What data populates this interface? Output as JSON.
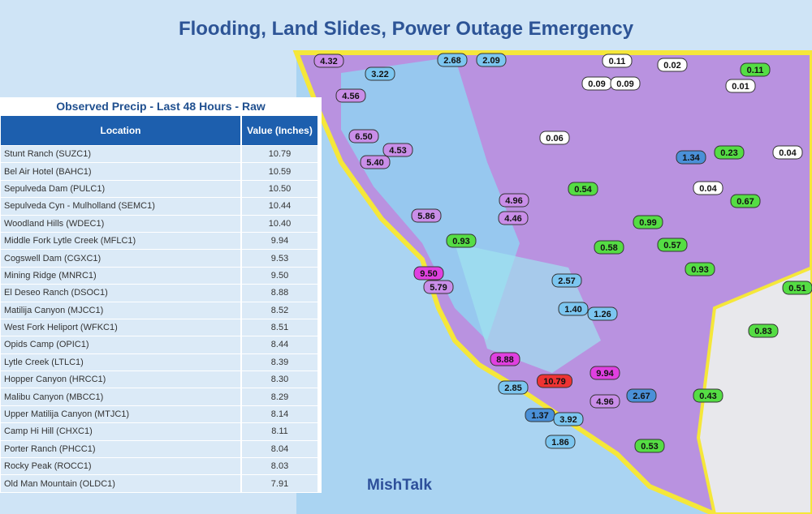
{
  "header": {
    "title": "Flooding, Land Slides, Power Outage Emergency"
  },
  "table": {
    "title": "Observed Precip - Last 48 Hours - Raw",
    "columns": [
      "Location",
      "Value (Inches)"
    ],
    "rows": [
      [
        "Stunt Ranch (SUZC1)",
        "10.79"
      ],
      [
        "Bel Air Hotel (BAHC1)",
        "10.59"
      ],
      [
        "Sepulveda Dam (PULC1)",
        "10.50"
      ],
      [
        "Sepulveda Cyn - Mulholland (SEMC1)",
        "10.44"
      ],
      [
        "Woodland Hills (WDEC1)",
        "10.40"
      ],
      [
        "Middle Fork Lytle Creek (MFLC1)",
        "9.94"
      ],
      [
        "Cogswell Dam (CGXC1)",
        "9.53"
      ],
      [
        "Mining Ridge (MNRC1)",
        "9.50"
      ],
      [
        "El Deseo Ranch (DSOC1)",
        "8.88"
      ],
      [
        "Matilija Canyon (MJCC1)",
        "8.52"
      ],
      [
        "West Fork Heliport (WFKC1)",
        "8.51"
      ],
      [
        "Opids Camp (OPIC1)",
        "8.44"
      ],
      [
        "Lytle Creek (LTLC1)",
        "8.39"
      ],
      [
        "Hopper Canyon (HRCC1)",
        "8.30"
      ],
      [
        "Malibu Canyon (MBCC1)",
        "8.29"
      ],
      [
        "Upper Matilija Canyon (MTJC1)",
        "8.14"
      ],
      [
        "Camp Hi Hill (CHXC1)",
        "8.11"
      ],
      [
        "Porter Ranch (PHCC1)",
        "8.04"
      ],
      [
        "Rocky Peak (ROCC1)",
        "8.03"
      ],
      [
        "Old Man Mountain (OLDC1)",
        "7.91"
      ]
    ]
  },
  "map": {
    "watermark": "MishTalk",
    "markers": [
      {
        "label": "4.32",
        "color": "#c98ee8"
      },
      {
        "label": "3.22",
        "color": "#7cc6f0"
      },
      {
        "label": "4.56",
        "color": "#c98ee8"
      },
      {
        "label": "2.68",
        "color": "#7cc6f0"
      },
      {
        "label": "2.09",
        "color": "#7cc6f0"
      },
      {
        "label": "0.11",
        "color": "#ffffff"
      },
      {
        "label": "0.02",
        "color": "#ffffff"
      },
      {
        "label": "0.11",
        "color": "#55dd44"
      },
      {
        "label": "0.09",
        "color": "#ffffff"
      },
      {
        "label": "0.09",
        "color": "#ffffff"
      },
      {
        "label": "0.01",
        "color": "#ffffff"
      },
      {
        "label": "6.50",
        "color": "#c98ee8"
      },
      {
        "label": "4.53",
        "color": "#c98ee8"
      },
      {
        "label": "5.40",
        "color": "#c98ee8"
      },
      {
        "label": "0.06",
        "color": "#ffffff"
      },
      {
        "label": "1.34",
        "color": "#4a90d8"
      },
      {
        "label": "0.23",
        "color": "#55dd44"
      },
      {
        "label": "0.04",
        "color": "#ffffff"
      },
      {
        "label": "0.54",
        "color": "#55dd44"
      },
      {
        "label": "0.99",
        "color": "#55dd44"
      },
      {
        "label": "5.86",
        "color": "#c98ee8"
      },
      {
        "label": "4.96",
        "color": "#c98ee8"
      },
      {
        "label": "4.46",
        "color": "#c98ee8"
      },
      {
        "label": "0.93",
        "color": "#55dd44"
      },
      {
        "label": "0.58",
        "color": "#55dd44"
      },
      {
        "label": "0.57",
        "color": "#55dd44"
      },
      {
        "label": "9.50",
        "color": "#e040e0"
      },
      {
        "label": "5.79",
        "color": "#c98ee8"
      },
      {
        "label": "2.57",
        "color": "#7cc6f0"
      },
      {
        "label": "1.40",
        "color": "#7cc6f0"
      },
      {
        "label": "1.26",
        "color": "#7cc6f0"
      },
      {
        "label": "8.88",
        "color": "#e040e0"
      },
      {
        "label": "10.79",
        "color": "#ee3333"
      },
      {
        "label": "9.94",
        "color": "#e040e0"
      },
      {
        "label": "2.85",
        "color": "#7cc6f0"
      },
      {
        "label": "4.96",
        "color": "#c98ee8"
      },
      {
        "label": "2.67",
        "color": "#4a90d8"
      },
      {
        "label": "0.43",
        "color": "#55dd44"
      },
      {
        "label": "1.37",
        "color": "#4a90d8"
      },
      {
        "label": "3.92",
        "color": "#7cc6f0"
      },
      {
        "label": "1.86",
        "color": "#7cc6f0"
      },
      {
        "label": "0.53",
        "color": "#55dd44"
      },
      {
        "label": "0.93",
        "color": "#55dd44"
      },
      {
        "label": "0.51",
        "color": "#55dd44"
      },
      {
        "label": "0.83",
        "color": "#55dd44"
      },
      {
        "label": "0.67",
        "color": "#55dd44"
      },
      {
        "label": "0.04",
        "color": "#ffffff"
      }
    ]
  }
}
